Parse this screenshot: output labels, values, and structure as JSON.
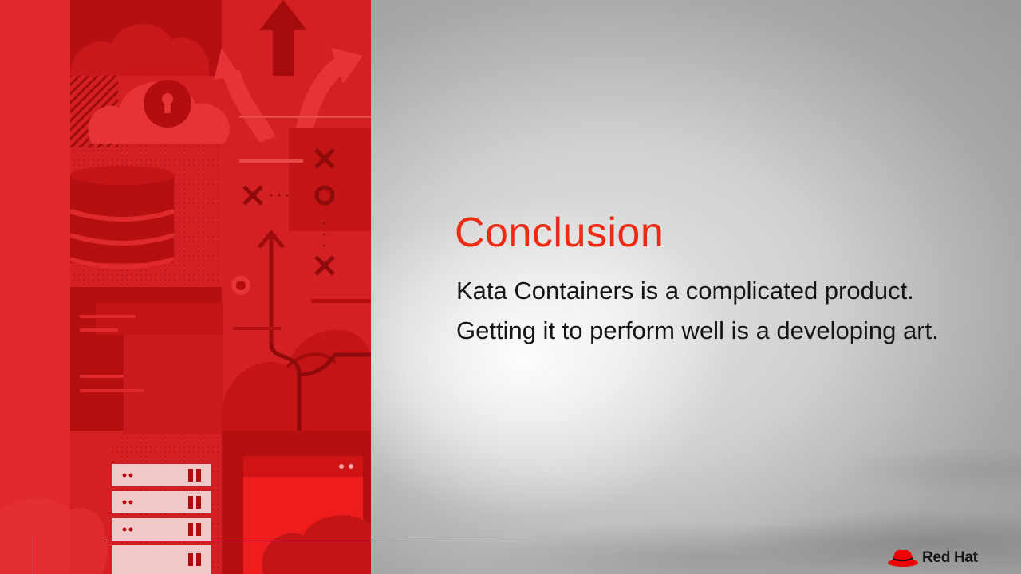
{
  "slide": {
    "title": "Conclusion",
    "lines": [
      "Kata Containers is a complicated product.",
      "Getting it to perform well is a developing art."
    ]
  },
  "brand": {
    "logo_text": "Red Hat",
    "logo_icon": "red-hat-fedora-icon"
  },
  "colors": {
    "accent": "#ee2a12",
    "panel_red": "#e02623",
    "panel_dark_red": "#b40d0d",
    "text": "#151515"
  }
}
